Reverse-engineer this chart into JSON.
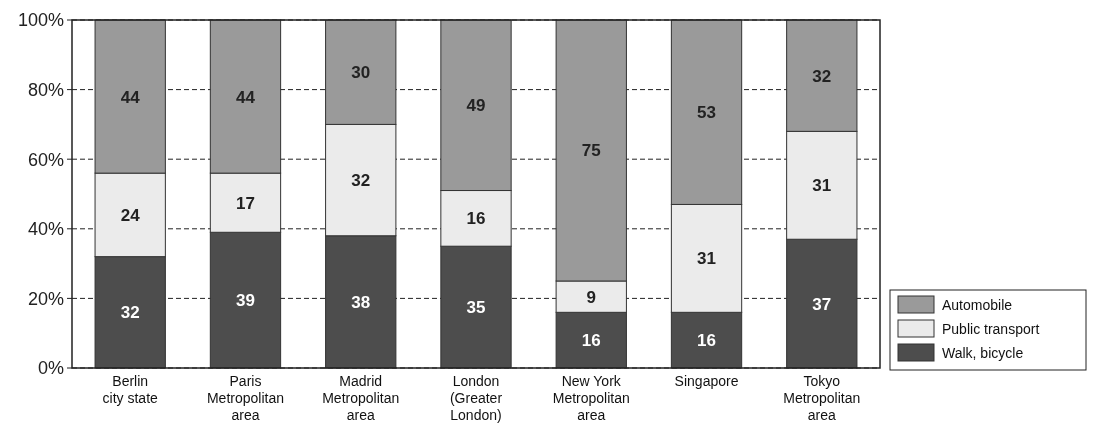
{
  "chart_data": {
    "type": "bar",
    "stacked": true,
    "categories": [
      "Berlin\ncity state",
      "Paris\nMetropolitan\narea",
      "Madrid\nMetropolitan\narea",
      "London\n(Greater\nLondon)",
      "New York\nMetropolitan\narea",
      "Singapore",
      "Tokyo\nMetropolitan\narea"
    ],
    "series": [
      {
        "name": "Walk, bicycle",
        "color": "#4d4d4d",
        "values": [
          32,
          39,
          38,
          35,
          16,
          16,
          37
        ]
      },
      {
        "name": "Public transport",
        "color": "#ebebeb",
        "values": [
          24,
          17,
          32,
          16,
          9,
          31,
          31
        ]
      },
      {
        "name": "Automobile",
        "color": "#9a9a9a",
        "values": [
          44,
          44,
          30,
          49,
          75,
          53,
          32
        ]
      }
    ],
    "ylim": [
      0,
      100
    ],
    "yticks": [
      {
        "value": 0,
        "label": "0%"
      },
      {
        "value": 20,
        "label": "20%"
      },
      {
        "value": 40,
        "label": "40%"
      },
      {
        "value": 60,
        "label": "60%"
      },
      {
        "value": 80,
        "label": "80%"
      },
      {
        "value": 100,
        "label": "100%"
      }
    ],
    "grid": "y",
    "legend": "bottom right",
    "data_labels": true
  }
}
